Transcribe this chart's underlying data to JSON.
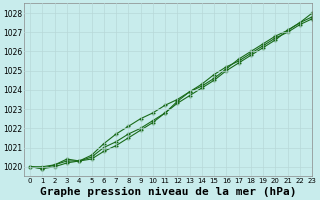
{
  "title": "Graphe pression niveau de la mer (hPa)",
  "bg_color": "#c8ecec",
  "grid_color": "#b8d8d8",
  "line_color": "#1a6b1a",
  "xlim": [
    -0.5,
    23
  ],
  "ylim": [
    1019.5,
    1028.5
  ],
  "yticks": [
    1020,
    1021,
    1022,
    1023,
    1024,
    1025,
    1026,
    1027,
    1028
  ],
  "xticks": [
    0,
    1,
    2,
    3,
    4,
    5,
    6,
    7,
    8,
    9,
    10,
    11,
    12,
    13,
    14,
    15,
    16,
    17,
    18,
    19,
    20,
    21,
    22,
    23
  ],
  "series1": [
    1020.0,
    1020.0,
    1020.1,
    1020.4,
    1020.3,
    1020.5,
    1021.0,
    1021.3,
    1021.7,
    1022.0,
    1022.4,
    1022.8,
    1023.3,
    1023.7,
    1024.1,
    1024.5,
    1025.0,
    1025.4,
    1025.8,
    1026.2,
    1026.6,
    1027.1,
    1027.5,
    1027.8
  ],
  "series2": [
    1020.0,
    1019.9,
    1020.0,
    1020.2,
    1020.3,
    1020.6,
    1021.2,
    1021.7,
    1022.1,
    1022.5,
    1022.8,
    1023.2,
    1023.5,
    1023.9,
    1024.2,
    1024.6,
    1025.1,
    1025.6,
    1026.0,
    1026.4,
    1026.8,
    1027.1,
    1027.5,
    1028.0
  ],
  "series3": [
    1020.0,
    1019.9,
    1020.1,
    1020.3,
    1020.3,
    1020.4,
    1020.8,
    1021.1,
    1021.5,
    1021.9,
    1022.3,
    1022.8,
    1023.4,
    1023.9,
    1024.3,
    1024.8,
    1025.2,
    1025.5,
    1025.9,
    1026.3,
    1026.7,
    1027.0,
    1027.4,
    1027.7
  ],
  "xlabel_fontsize": 7.5,
  "ylabel_fontsize": 6.5,
  "title_fontsize": 8
}
